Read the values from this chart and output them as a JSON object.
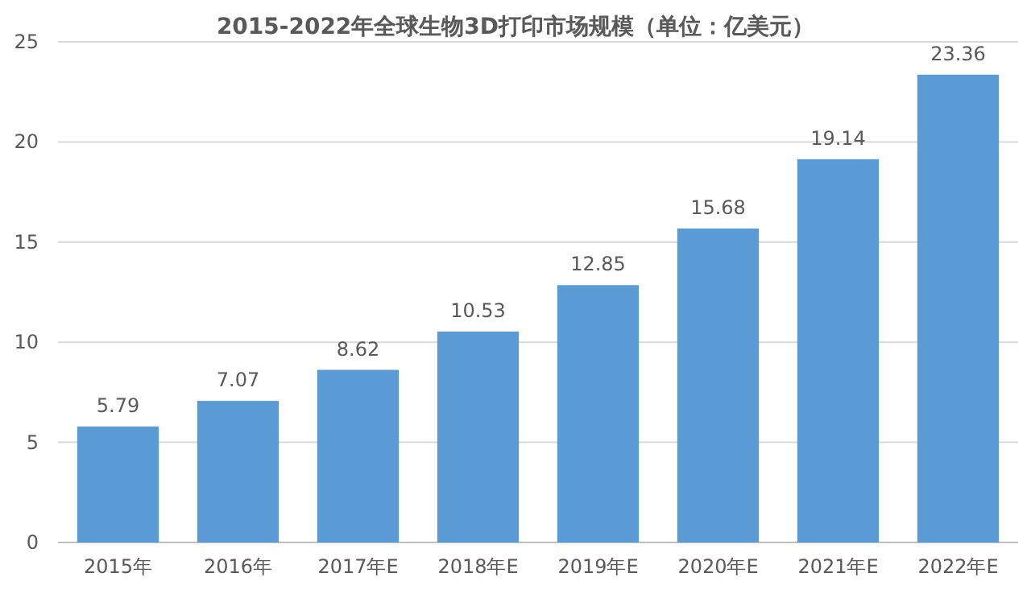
{
  "chart_data": {
    "type": "bar",
    "title": "2015-2022年全球生物3D打印市场规模（单位：亿美元）",
    "categories": [
      "2015年",
      "2016年",
      "2017年E",
      "2018年E",
      "2019年E",
      "2020年E",
      "2021年E",
      "2022年E"
    ],
    "values": [
      5.79,
      7.07,
      8.62,
      10.53,
      12.85,
      15.68,
      19.14,
      23.36
    ],
    "color": "#5b9bd5",
    "ylim": [
      0,
      25
    ],
    "yticks": [
      0,
      5,
      10,
      15,
      20,
      25
    ],
    "grid": "y",
    "data_labels": true
  }
}
